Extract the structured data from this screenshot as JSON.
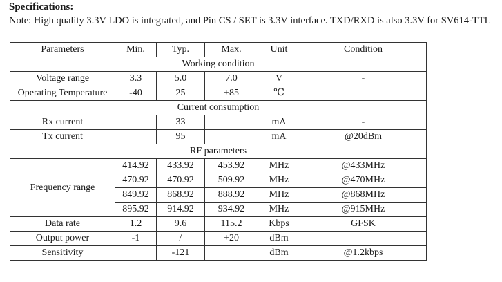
{
  "heading": "Specifications:",
  "note": "Note: High quality 3.3V LDO is integrated, and Pin CS / SET is 3.3V interface. TXD/RXD is also 3.3V for SV614-TTL",
  "header": [
    "Parameters",
    "Min.",
    "Typ.",
    "Max.",
    "Unit",
    "Condition"
  ],
  "sections": {
    "working": "Working condition",
    "current": "Current consumption",
    "rf": "RF parameters"
  },
  "working": {
    "voltage": [
      "Voltage range",
      "3.3",
      "5.0",
      "7.0",
      "V",
      "-"
    ],
    "temperature": [
      "Operating Temperature",
      "-40",
      "25",
      "+85",
      "℃",
      ""
    ]
  },
  "current": {
    "rx": [
      "Rx current",
      "",
      "33",
      "",
      "mA",
      "-"
    ],
    "tx": [
      "Tx current",
      "",
      "95",
      "",
      "mA",
      "@20dBm"
    ]
  },
  "rf": {
    "frequency_label": "Frequency range",
    "frequency_rows": [
      [
        "414.92",
        "433.92",
        "453.92",
        "MHz",
        "@433MHz"
      ],
      [
        "470.92",
        "470.92",
        "509.92",
        "MHz",
        "@470MHz"
      ],
      [
        "849.92",
        "868.92",
        "888.92",
        "MHz",
        "@868MHz"
      ],
      [
        "895.92",
        "914.92",
        "934.92",
        "MHz",
        "@915MHz"
      ]
    ],
    "data_rate": [
      "Data rate",
      "1.2",
      "9.6",
      "115.2",
      "Kbps",
      "GFSK"
    ],
    "output_power": [
      "Output power",
      "-1",
      "/",
      "+20",
      "dBm",
      ""
    ],
    "sensitivity": [
      "Sensitivity",
      "",
      "-121",
      "",
      "dBm",
      "@1.2kbps"
    ]
  }
}
